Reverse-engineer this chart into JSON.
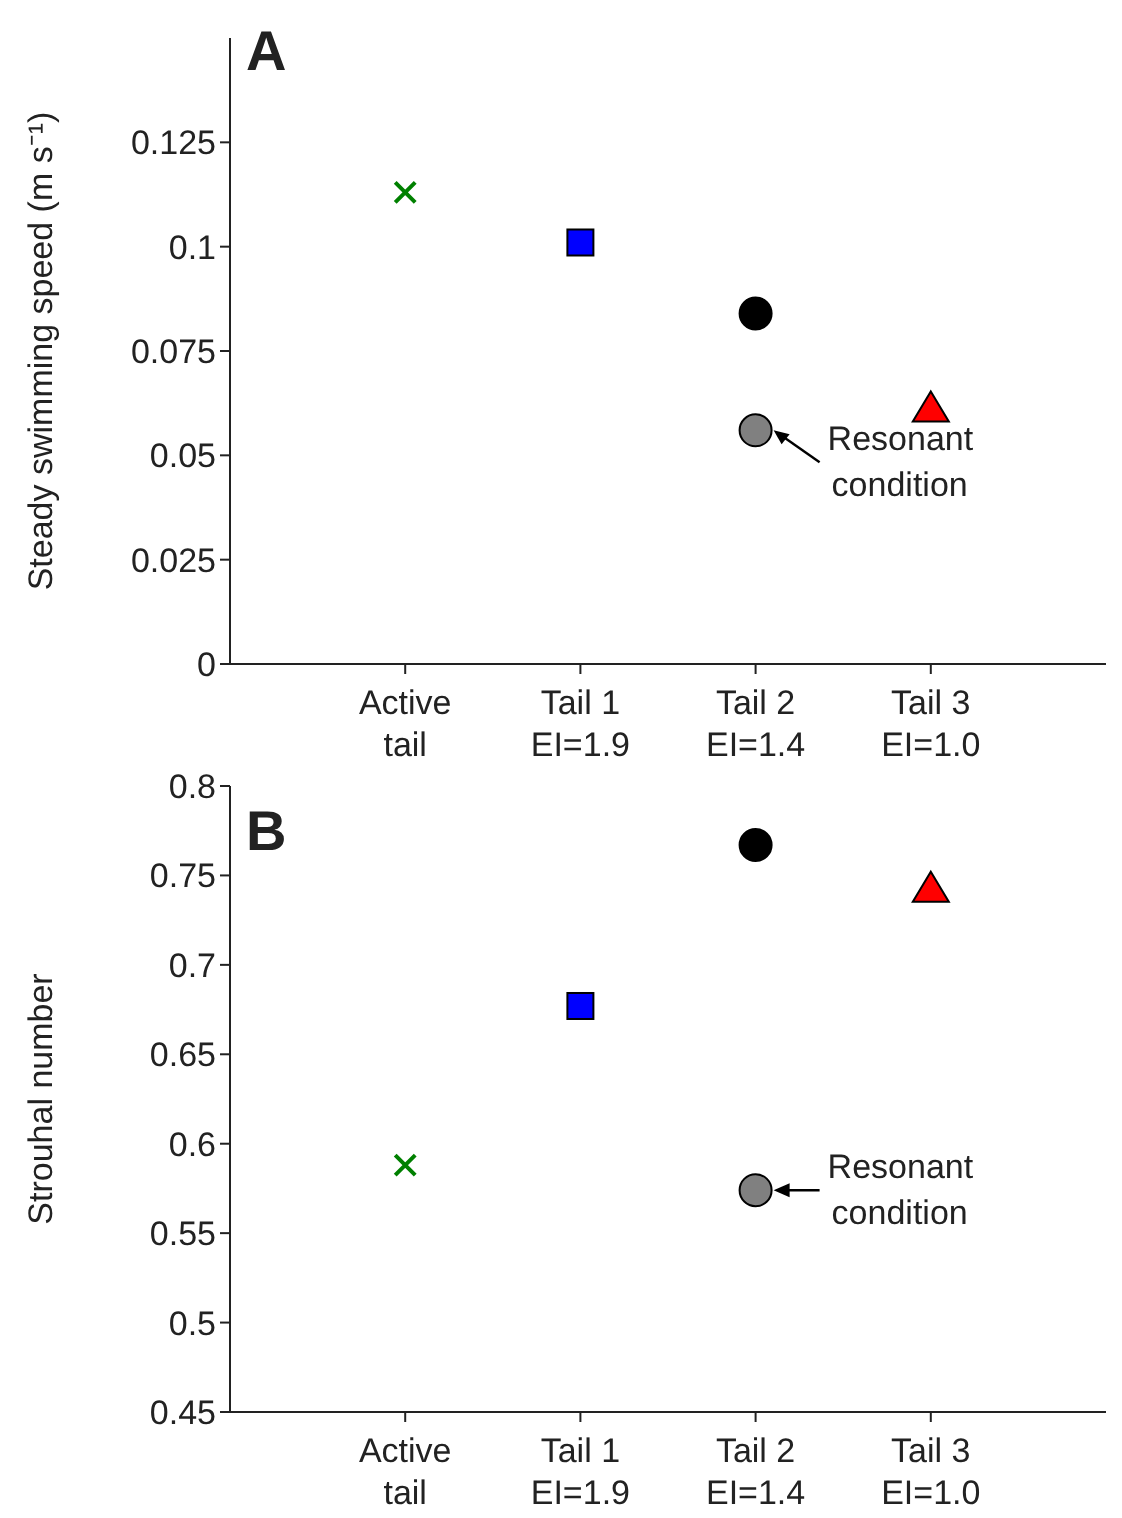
{
  "chart_data": [
    {
      "type": "scatter",
      "title": "A",
      "ylabel": "Steady swimming speed (m s⁻¹)",
      "categories": [
        "Active\ntail",
        "Tail 1\nEI=1.9",
        "Tail 2\nEI=1.4",
        "Tail 3\nEI=1.0"
      ],
      "ylim": [
        0,
        0.15
      ],
      "yticks": [
        0,
        0.025,
        0.05,
        0.075,
        0.1,
        0.125
      ],
      "series": [
        {
          "color": "#008000",
          "marker": "cross",
          "values": [
            0.113,
            null,
            null,
            null
          ]
        },
        {
          "color": "#0000ff",
          "marker": "square",
          "values": [
            null,
            0.101,
            null,
            null
          ]
        },
        {
          "color": "#000000",
          "marker": "circle",
          "values": [
            null,
            null,
            0.084,
            null
          ]
        },
        {
          "color": "#808080",
          "marker": "circle",
          "values": [
            null,
            null,
            0.056,
            null
          ]
        },
        {
          "color": "#ff0000",
          "marker": "triangle",
          "values": [
            null,
            null,
            null,
            0.061
          ]
        }
      ],
      "annotations": [
        {
          "text": "Resonant condition",
          "x": "Tail 2\nEI=1.4",
          "y": 0.056
        }
      ]
    },
    {
      "type": "scatter",
      "title": "B",
      "ylabel": "Strouhal number",
      "categories": [
        "Active\ntail",
        "Tail 1\nEI=1.9",
        "Tail 2\nEI=1.4",
        "Tail 3\nEI=1.0"
      ],
      "ylim": [
        0.45,
        0.8
      ],
      "yticks": [
        0.45,
        0.5,
        0.55,
        0.6,
        0.65,
        0.7,
        0.75,
        0.8
      ],
      "series": [
        {
          "color": "#008000",
          "marker": "cross",
          "values": [
            0.588,
            null,
            null,
            null
          ]
        },
        {
          "color": "#0000ff",
          "marker": "square",
          "values": [
            null,
            0.677,
            null,
            null
          ]
        },
        {
          "color": "#000000",
          "marker": "circle",
          "values": [
            null,
            null,
            0.767,
            null
          ]
        },
        {
          "color": "#808080",
          "marker": "circle",
          "values": [
            null,
            null,
            0.574,
            null
          ]
        },
        {
          "color": "#ff0000",
          "marker": "triangle",
          "values": [
            null,
            null,
            null,
            0.742
          ]
        }
      ],
      "annotations": [
        {
          "text": "Resonant condition",
          "x": "Tail 2\nEI=1.4",
          "y": 0.574
        }
      ]
    }
  ]
}
